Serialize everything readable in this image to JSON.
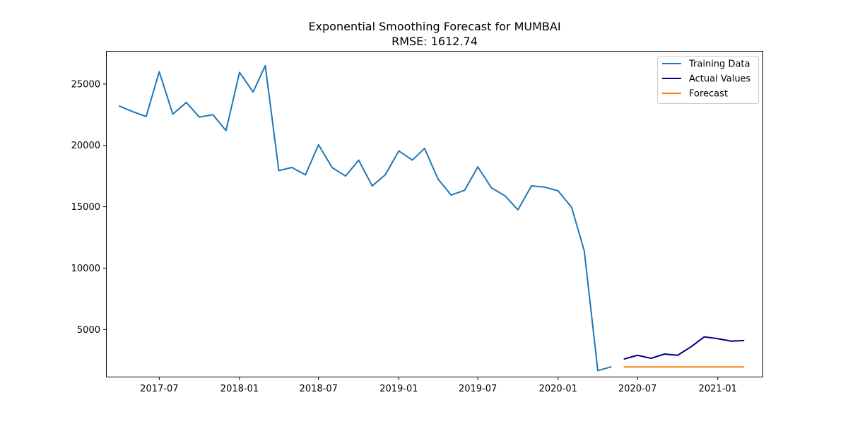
{
  "chart_data": {
    "type": "line",
    "title": "Exponential Smoothing Forecast for MUMBAI",
    "subtitle": "RMSE: 1612.74",
    "xlabel": "",
    "ylabel": "",
    "xlim": [
      "2017-03-01",
      "2021-04-15"
    ],
    "ylim": [
      1100,
      27700
    ],
    "x_ticks": [
      "2017-07",
      "2018-01",
      "2018-07",
      "2019-01",
      "2019-07",
      "2020-01",
      "2020-07",
      "2021-01"
    ],
    "y_ticks": [
      5000,
      10000,
      15000,
      20000,
      25000
    ],
    "grid": false,
    "legend_position": "top-right",
    "series": [
      {
        "name": "Training Data",
        "color": "#1f77b4",
        "x": [
          "2017-04",
          "2017-05",
          "2017-06",
          "2017-07",
          "2017-08",
          "2017-09",
          "2017-10",
          "2017-11",
          "2017-12",
          "2018-01",
          "2018-02",
          "2018-03",
          "2018-04",
          "2018-05",
          "2018-06",
          "2018-07",
          "2018-08",
          "2018-09",
          "2018-10",
          "2018-11",
          "2018-12",
          "2019-01",
          "2019-02",
          "2019-03",
          "2019-04",
          "2019-05",
          "2019-06",
          "2019-07",
          "2019-08",
          "2019-09",
          "2019-10",
          "2019-11",
          "2019-12",
          "2020-01",
          "2020-02",
          "2020-03",
          "2020-04",
          "2020-05"
        ],
        "values": [
          23200,
          22750,
          22350,
          26000,
          22550,
          23500,
          22300,
          22500,
          21200,
          25950,
          24350,
          26500,
          17950,
          18200,
          17600,
          20050,
          18200,
          17500,
          18800,
          16700,
          17600,
          19550,
          18800,
          19750,
          17250,
          15950,
          16350,
          18250,
          16550,
          15900,
          14750,
          16700,
          16600,
          16300,
          14950,
          11400,
          1650,
          1950
        ]
      },
      {
        "name": "Actual Values",
        "color": "#000080",
        "x": [
          "2020-06",
          "2020-07",
          "2020-08",
          "2020-09",
          "2020-10",
          "2020-11",
          "2020-12",
          "2021-01",
          "2021-02",
          "2021-03"
        ],
        "values": [
          2600,
          2900,
          2650,
          3000,
          2900,
          3600,
          4400,
          4250,
          4050,
          4100
        ]
      },
      {
        "name": "Forecast",
        "color": "#ff7f0e",
        "x": [
          "2020-06",
          "2020-07",
          "2020-08",
          "2020-09",
          "2020-10",
          "2020-11",
          "2020-12",
          "2021-01",
          "2021-02",
          "2021-03"
        ],
        "values": [
          1950,
          1950,
          1950,
          1950,
          1950,
          1950,
          1950,
          1950,
          1950,
          1950
        ]
      }
    ]
  }
}
